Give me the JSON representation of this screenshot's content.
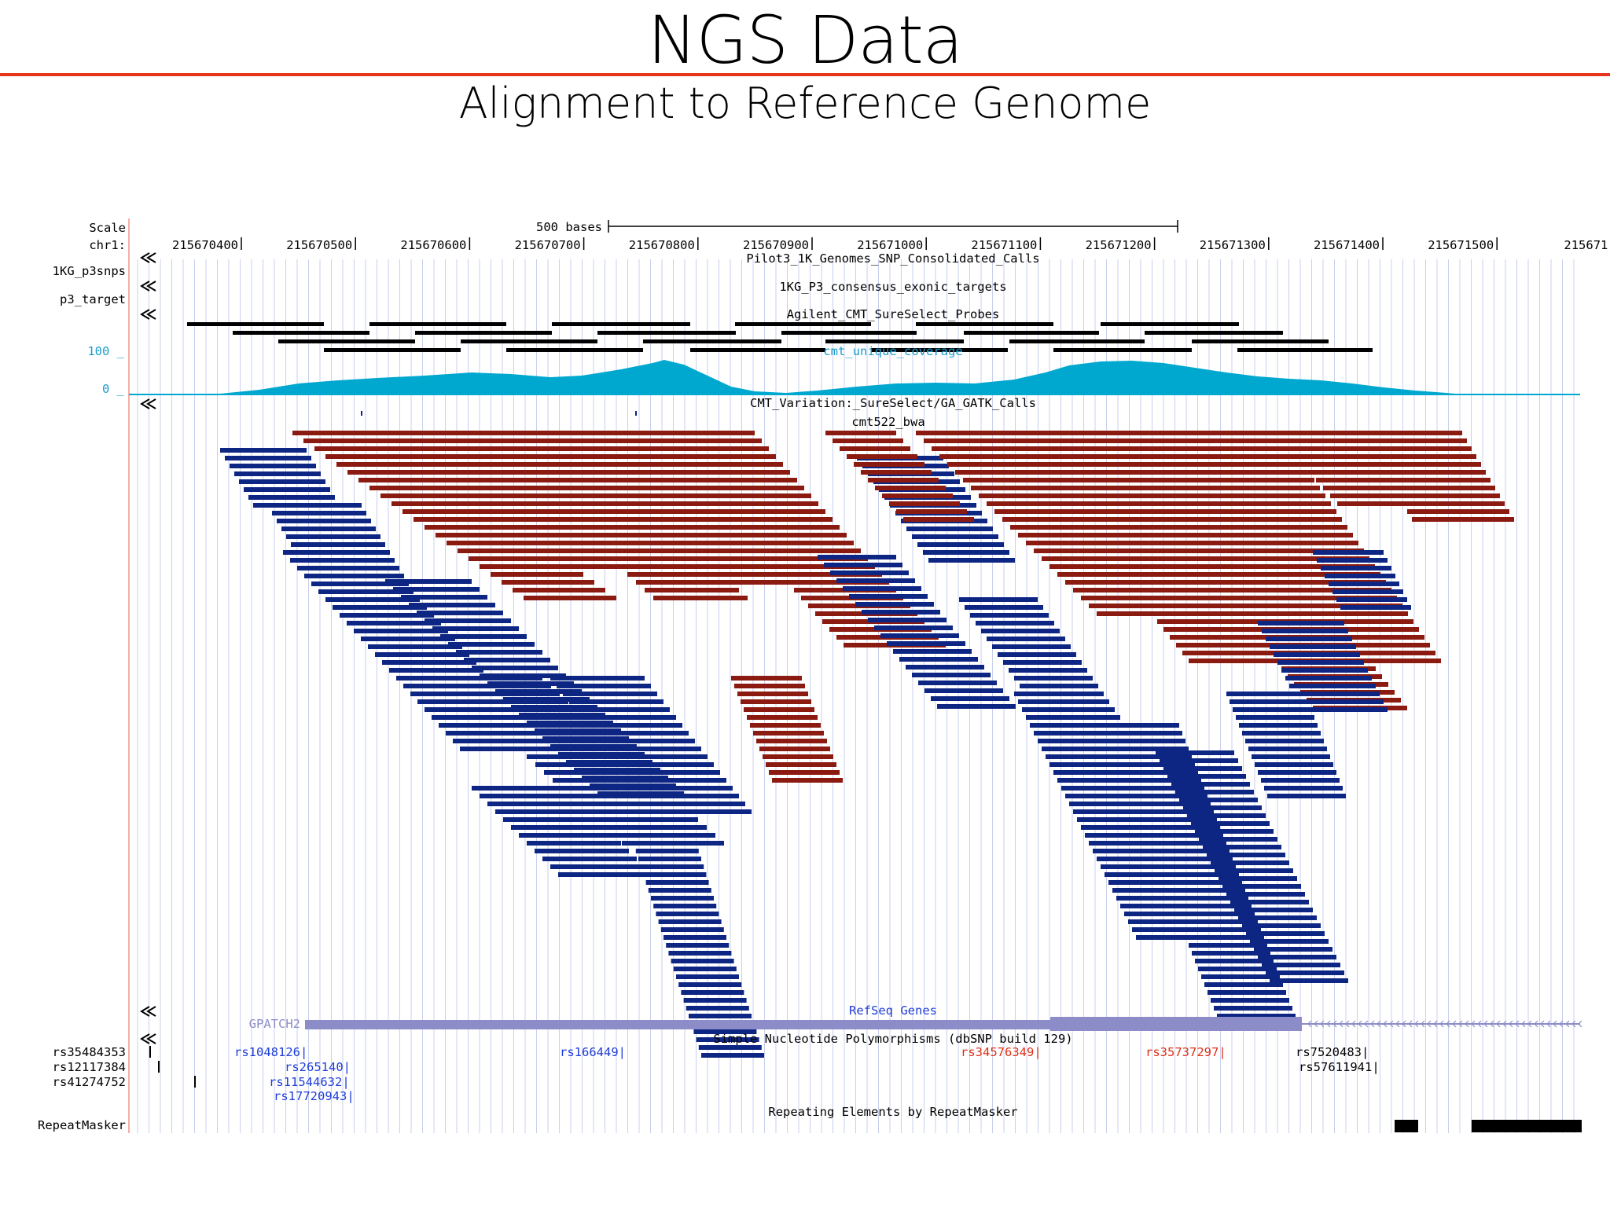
{
  "slide": {
    "title": "NGS Data",
    "subtitle": "Alignment to Reference Genome"
  },
  "browser": {
    "scale_label": "Scale",
    "chrom_label": "chr1:",
    "scale_bar_label": "500 bases",
    "position_ticks": [
      "215670400",
      "215670500",
      "215670600",
      "215670700",
      "215670800",
      "215670900",
      "215671000",
      "215671100",
      "215671200",
      "215671300",
      "215671400",
      "215671500",
      "215671"
    ],
    "side_labels": [
      "1KG_p3snps",
      "p3_target"
    ],
    "colors": {
      "accent_rule": "#e8361e",
      "reverse_read": "#8b1a10",
      "forward_read": "#0e2683",
      "coverage": "#00a8d0",
      "coverage_label": "#1a9ccc",
      "gene": "#8c8cc8",
      "snp_link": "#1e3cd8",
      "snp_red": "#e03018",
      "grid": "#c8d0ec"
    },
    "tracks": [
      {
        "name": "Pilot3_1K_Genomes_SNP_Consolidated_Calls"
      },
      {
        "name": "1KG_P3_consensus_exonic_targets"
      },
      {
        "name": "Agilent_CMT_SureSelect_Probes"
      },
      {
        "name": "cmt_unique_coverage",
        "ymax_label": "100 _",
        "ymin_label": "0 _"
      },
      {
        "name": "CMT_Variation:_SureSelect/GA_GATK_Calls"
      },
      {
        "name": "cmt522_bwa"
      },
      {
        "name": "RefSeq Genes",
        "gene": "GPATCH2"
      },
      {
        "name": "Simple Nucleotide Polymorphisms (dbSNP build 129)"
      },
      {
        "name": "Repeating Elements by RepeatMasker",
        "side_label": "RepeatMasker"
      }
    ],
    "snp_side_labels": [
      "rs35484353",
      "rs12117384",
      "rs41274752"
    ],
    "snps": [
      {
        "id": "rs1048126",
        "color": "blue"
      },
      {
        "id": "rs265140",
        "color": "blue"
      },
      {
        "id": "rs11544632",
        "color": "blue"
      },
      {
        "id": "rs17720943",
        "color": "blue"
      },
      {
        "id": "rs166449",
        "color": "blue"
      },
      {
        "id": "rs34576349",
        "color": "red"
      },
      {
        "id": "rs35737297",
        "color": "red"
      },
      {
        "id": "rs7520483",
        "color": "black"
      },
      {
        "id": "rs57611941",
        "color": "black"
      }
    ]
  }
}
